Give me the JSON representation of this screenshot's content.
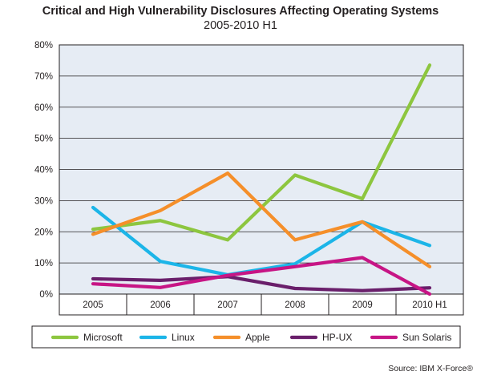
{
  "chart_data": {
    "type": "line",
    "title": "Critical and High Vulnerability Disclosures Affecting Operating Systems",
    "subtitle": "2005-2010 H1",
    "categories": [
      "2005",
      "2006",
      "2007",
      "2008",
      "2009",
      "2010 H1"
    ],
    "y_ticks": [
      "0%",
      "10%",
      "20%",
      "30%",
      "40%",
      "50%",
      "60%",
      "70%",
      "80%"
    ],
    "ylim": [
      0,
      80
    ],
    "grid": true,
    "legend_position": "bottom",
    "series": [
      {
        "name": "Microsoft",
        "color": "#8dc63f",
        "values": [
          20.8,
          23.6,
          17.4,
          38.2,
          30.6,
          73.5
        ]
      },
      {
        "name": "Linux",
        "color": "#1cb5e8",
        "values": [
          27.8,
          10.5,
          6.2,
          9.7,
          23.2,
          15.6
        ]
      },
      {
        "name": "Apple",
        "color": "#f58f2a",
        "values": [
          19.2,
          26.8,
          38.8,
          17.4,
          23.2,
          8.8
        ]
      },
      {
        "name": "HP-UX",
        "color": "#6a1f6b",
        "values": [
          4.9,
          4.4,
          5.6,
          1.8,
          1.1,
          2.0
        ]
      },
      {
        "name": "Sun Solaris",
        "color": "#c71585",
        "values": [
          3.3,
          2.1,
          6.0,
          8.8,
          11.7,
          0.0
        ]
      }
    ]
  },
  "source": "Source: IBM X-Force®"
}
